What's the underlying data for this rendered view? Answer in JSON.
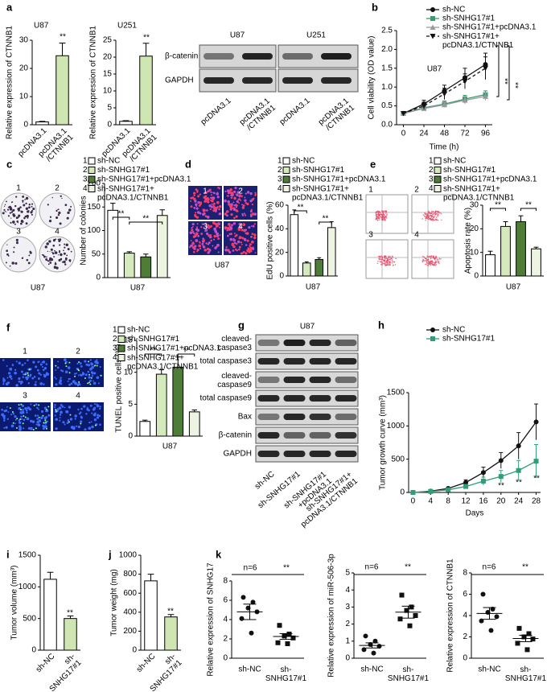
{
  "panel_letters": [
    "a",
    "b",
    "c",
    "d",
    "e",
    "f",
    "g",
    "h",
    "i",
    "j",
    "k"
  ],
  "blots": [
    {
      "groups": [
        "U87",
        "U251"
      ],
      "rows": [
        "β-catenin",
        "GAPDH"
      ],
      "lanes": [
        "pcDNA3.1",
        "pcDNA3.1\n/CTNNB1",
        "pcDNA3.1",
        "pcDNA3.1\n/CTNNB1"
      ]
    },
    {
      "title": "U87",
      "rows": [
        "cleaved-\ncaspase3",
        "total caspase3",
        "cleaved-\ncaspase9",
        "total caspase9",
        "Bax",
        "β-catenin",
        "GAPDH"
      ],
      "lanes": [
        "sh-NC",
        "sh-SNHG17#1",
        "sh-SNHG17#1\n+pcDNA3.1",
        "sh-SNHG17#1+\npcDNA3.1/CTNNB1"
      ]
    }
  ],
  "images": [
    {
      "labels": [
        "1",
        "2",
        "3",
        "4"
      ],
      "caption": "U87"
    },
    {
      "labels": [
        "1",
        "2",
        "3",
        "4"
      ],
      "caption": "U87"
    },
    {
      "labels": [
        "1",
        "2",
        "3",
        "4"
      ]
    },
    {
      "labels": [
        "1",
        "2",
        "3",
        "4"
      ]
    }
  ],
  "chart_data": [
    {
      "type": "bar",
      "title": "U87",
      "ylabel": "Relative expression of CTNNB1",
      "categories": [
        "pcDNA3.1",
        "pcDNA3.1\n/CTNNB1"
      ],
      "values": [
        1,
        24.5
      ],
      "errors": [
        0.2,
        4.5
      ],
      "colors": [
        "#ffffff",
        "#cfe6b2"
      ],
      "ylim": [
        0,
        30
      ],
      "yticks": [
        0,
        10,
        20,
        30
      ],
      "annotations": [
        "**"
      ]
    },
    {
      "type": "bar",
      "title": "U251",
      "ylabel": "Relative expression of CTNNB1",
      "categories": [
        "pcDNA3.1",
        "pcDNA3.1\n/CTNNB1"
      ],
      "values": [
        1,
        20.3
      ],
      "errors": [
        0.2,
        3.8
      ],
      "colors": [
        "#ffffff",
        "#cfe6b2"
      ],
      "ylim": [
        0,
        25
      ],
      "yticks": [
        0,
        5,
        10,
        15,
        20,
        25
      ],
      "annotations": [
        "**"
      ]
    },
    {
      "type": "line",
      "xlabel": "Time (h)",
      "ylabel": "Cell viability (OD value)",
      "x": [
        0,
        24,
        48,
        72,
        96
      ],
      "xlim": [
        -8,
        104
      ],
      "xticks": [
        0,
        24,
        48,
        72,
        96
      ],
      "ylim": [
        0,
        2.5
      ],
      "yticks": [
        {
          "value": 0,
          "label": "0.0"
        },
        0.5,
        {
          "value": 1,
          "label": "1.0"
        },
        1.5,
        {
          "value": 2,
          "label": "2.0"
        },
        2.5
      ],
      "series": [
        {
          "name": "sh-NC",
          "color": "#111111",
          "marker": "circle",
          "dash": false,
          "values": [
            0.3,
            0.55,
            0.9,
            1.25,
            1.6
          ],
          "errors": [
            0.05,
            0.1,
            0.15,
            0.25,
            0.3
          ]
        },
        {
          "name": "sh-SNHG17#1",
          "color": "#3d9a70",
          "marker": "square",
          "dash": false,
          "values": [
            0.3,
            0.45,
            0.55,
            0.68,
            0.8
          ],
          "errors": [
            0.04,
            0.05,
            0.08,
            0.1,
            0.1
          ]
        },
        {
          "name": "sh-SNHG17#1+pcDNA3.1",
          "color": "#9a9a9a",
          "marker": "triangle",
          "dash": false,
          "values": [
            0.3,
            0.43,
            0.53,
            0.65,
            0.75
          ],
          "errors": [
            0.04,
            0.05,
            0.07,
            0.1,
            0.1
          ]
        },
        {
          "name": "sh-SNHG17#1+\npcDNA3.1/CTNNB1",
          "color": "#111111",
          "marker": "triangle-down",
          "dash": true,
          "values": [
            0.3,
            0.5,
            0.82,
            1.15,
            1.5
          ],
          "errors": [
            0.05,
            0.1,
            0.15,
            0.2,
            0.3
          ]
        }
      ],
      "annotations": [
        "U87",
        "**",
        "**"
      ]
    },
    {
      "type": "bar",
      "legend": true,
      "legend_numbers": [
        "1",
        "2",
        "3",
        "4"
      ],
      "categories": [
        "sh-NC",
        "sh-SNHG17#1",
        "sh-SNHG17#1+pcDNA3.1",
        "sh-SNHG17#1+\npcDNA3.1/CTNNB1"
      ],
      "values": [
        143,
        52,
        44,
        132
      ],
      "errors": [
        15,
        3,
        6,
        12
      ],
      "colors": [
        "#ffffff",
        "#d4eabc",
        "#4f7d38",
        "#eef4e2"
      ],
      "ylabel": "Number of colonies",
      "xlabel": "U87",
      "ylim": [
        0,
        200
      ],
      "yticks": [
        0,
        50,
        100,
        150,
        200
      ],
      "annotations": [
        "**",
        "**"
      ]
    },
    {
      "type": "bar",
      "legend": true,
      "legend_numbers": [
        "1",
        "2",
        "3",
        "4"
      ],
      "categories": [
        "sh-NC",
        "sh-SNHG17#1",
        "sh-SNHG17#1+pcDNA3.1",
        "sh-SNHG17#1+\npcDNA3.1/CTNNB1"
      ],
      "values": [
        52,
        11,
        14,
        41
      ],
      "errors": [
        4,
        1,
        1.5,
        5
      ],
      "colors": [
        "#ffffff",
        "#d4eabc",
        "#4f7d38",
        "#eef4e2"
      ],
      "ylabel": "EdU positive cells (%)",
      "xlabel": "U87",
      "ylim": [
        0,
        60
      ],
      "yticks": [
        0,
        20,
        40,
        60
      ],
      "annotations": [
        "**",
        "**"
      ]
    },
    {
      "type": "bar",
      "legend": true,
      "legend_numbers": [
        "1",
        "2",
        "3",
        "4"
      ],
      "categories": [
        "sh-NC",
        "sh-SNHG17#1",
        "sh-SNHG17#1+pcDNA3.1",
        "sh-SNHG17#1+\npcDNA3.1/CTNNB1"
      ],
      "values": [
        9,
        21,
        23,
        11.5
      ],
      "errors": [
        1.5,
        2,
        2.5,
        0.7
      ],
      "colors": [
        "#ffffff",
        "#d4eabc",
        "#4f7d38",
        "#eef4e2"
      ],
      "ylabel": "Apoptosis rate (%)",
      "xlabel": "U87",
      "ylim": [
        0,
        30
      ],
      "yticks": [
        0,
        10,
        20,
        30
      ],
      "annotations": [
        "**",
        "**"
      ]
    },
    {
      "type": "bar",
      "legend": true,
      "legend_numbers": [
        "1",
        "2",
        "3",
        "4"
      ],
      "categories": [
        "sh-NC",
        "sh-SNHG17#1",
        "sh-SNHG17#1+pcDNA3.1",
        "sh-SNHG17#1+\npcDNA3.1/CTNNB1"
      ],
      "values": [
        2.3,
        9.7,
        10.8,
        3.8
      ],
      "errors": [
        0.2,
        0.7,
        1.6,
        0.3
      ],
      "colors": [
        "#ffffff",
        "#d4eabc",
        "#4f7d38",
        "#eef4e2"
      ],
      "ylabel": "TUNEL positive cells (%)",
      "xlabel": "U87",
      "ylim": [
        0,
        15
      ],
      "yticks": [
        0,
        5,
        10,
        15
      ],
      "annotations": [
        "**",
        "**"
      ]
    },
    {
      "type": "line",
      "xlabel": "Days",
      "ylabel": "Tumor growth curve (mm³)",
      "x": [
        0,
        4,
        8,
        12,
        16,
        20,
        24,
        28
      ],
      "xlim": [
        -1,
        29
      ],
      "xticks": [
        0,
        4,
        8,
        12,
        16,
        20,
        24,
        28
      ],
      "ylim": [
        0,
        1500
      ],
      "yticks": [
        0,
        500,
        1000,
        1500
      ],
      "series": [
        {
          "name": "sh-NC",
          "color": "#111111",
          "marker": "circle",
          "dash": false,
          "values": [
            0,
            20,
            60,
            150,
            300,
            480,
            700,
            1060
          ],
          "errors": [
            0,
            10,
            20,
            40,
            80,
            120,
            200,
            270
          ]
        },
        {
          "name": "sh-SNHG17#1",
          "color": "#2e9e78",
          "marker": "square",
          "dash": false,
          "values": [
            0,
            15,
            40,
            90,
            170,
            240,
            330,
            470
          ],
          "errors": [
            0,
            5,
            15,
            30,
            60,
            90,
            150,
            250
          ]
        }
      ],
      "annotations": [
        "**",
        "**",
        "**"
      ]
    },
    {
      "type": "bar",
      "ylabel": "Tumor volume (mm³)",
      "categories": [
        "sh-NC",
        "sh-\nSNHG17#1"
      ],
      "values": [
        1120,
        500
      ],
      "errors": [
        110,
        40
      ],
      "colors": [
        "#ffffff",
        "#cfe6b2"
      ],
      "ylim": [
        0,
        1500
      ],
      "yticks": [
        0,
        500,
        1000,
        1500
      ],
      "annotations": [
        "**"
      ]
    },
    {
      "type": "bar",
      "ylabel": "Tumor weight (mg)",
      "categories": [
        "sh-NC",
        "sh-\nSNHG17#1"
      ],
      "values": [
        730,
        350
      ],
      "errors": [
        70,
        25
      ],
      "colors": [
        "#ffffff",
        "#cfe6b2"
      ],
      "ylim": [
        0,
        1000
      ],
      "yticks": [
        0,
        200,
        400,
        600,
        800,
        1000
      ],
      "annotations": [
        "**"
      ]
    },
    {
      "type": "scatter",
      "ylabel": "Relative expression of SNHG17",
      "categories": [
        "sh-NC",
        "sh-\nSNHG17#1"
      ],
      "ylim": [
        0,
        8
      ],
      "yticks": [
        0,
        2,
        4,
        6,
        8
      ],
      "series": [
        {
          "marker": "circle",
          "values": [
            6.3,
            5.8,
            5.2,
            4.8,
            4.1,
            2.6
          ],
          "mean": 4.8,
          "error": 0.8
        },
        {
          "marker": "square",
          "values": [
            3.4,
            2.5,
            2.3,
            2.1,
            1.6,
            1.5
          ],
          "mean": 2.25,
          "error": 0.3
        }
      ],
      "annotations": [
        "n=6",
        "**"
      ]
    },
    {
      "type": "scatter",
      "ylabel": "Relative expression of miR-506-3p",
      "categories": [
        "sh-NC",
        "sh-\nSNHG17#1"
      ],
      "ylim": [
        0,
        5
      ],
      "yticks": [
        0,
        1,
        2,
        3,
        4,
        5
      ],
      "series": [
        {
          "marker": "circle",
          "values": [
            1.3,
            1.0,
            0.8,
            0.7,
            0.5,
            0.3
          ],
          "mean": 0.75,
          "error": 0.15
        },
        {
          "marker": "square",
          "values": [
            3.7,
            3.0,
            2.8,
            2.5,
            2.3,
            1.9
          ],
          "mean": 2.7,
          "error": 0.35
        }
      ],
      "annotations": [
        "n=6",
        "**"
      ]
    },
    {
      "type": "scatter",
      "ylabel": "Relative expression of CTNNB1",
      "categories": [
        "sh-NC",
        "sh-\nSNHG17#1"
      ],
      "ylim": [
        0,
        8
      ],
      "yticks": [
        0,
        2,
        4,
        6,
        8
      ],
      "series": [
        {
          "marker": "circle",
          "values": [
            6.0,
            4.6,
            4.3,
            3.9,
            3.5,
            2.6
          ],
          "mean": 4.2,
          "error": 0.55
        },
        {
          "marker": "square",
          "values": [
            2.8,
            2.3,
            2.0,
            1.8,
            1.4,
            0.8
          ],
          "mean": 1.85,
          "error": 0.3
        }
      ],
      "annotations": [
        "n=6",
        "**"
      ]
    }
  ]
}
